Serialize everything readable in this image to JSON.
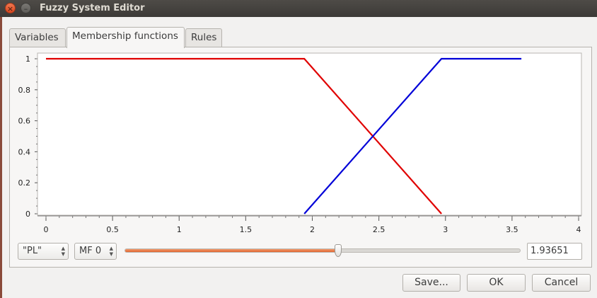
{
  "window": {
    "title": "Fuzzy System Editor",
    "close_glyph": "×",
    "minimize_glyph": "–"
  },
  "tabs": [
    {
      "label": "Variables"
    },
    {
      "label": "Membership functions"
    },
    {
      "label": "Rules"
    }
  ],
  "controls": {
    "variable_select": "\"PL\"",
    "mf_select": "MF 0",
    "slider_value": 1.93651,
    "slider_min": 0,
    "slider_max": 3.6,
    "value_text": "1.93651"
  },
  "buttons": {
    "save": "Save...",
    "ok": "OK",
    "cancel": "Cancel"
  },
  "colors": {
    "series_red": "#e00000",
    "series_blue": "#0000d8",
    "slider_accent": "#e8703a"
  },
  "chart_data": {
    "type": "line",
    "xlim": [
      0,
      4
    ],
    "ylim": [
      0,
      1
    ],
    "x_ticks": [
      "0",
      "0.5",
      "1",
      "1.5",
      "2",
      "2.5",
      "3",
      "3.5",
      "4"
    ],
    "y_ticks": [
      "0",
      "0.2",
      "0.4",
      "0.6",
      "0.8",
      "1"
    ],
    "series": [
      {
        "color": "#e00000",
        "points": [
          [
            0,
            1
          ],
          [
            1.94,
            1
          ],
          [
            2.97,
            0
          ]
        ]
      },
      {
        "color": "#0000d8",
        "points": [
          [
            1.94,
            0
          ],
          [
            2.97,
            1
          ],
          [
            3.57,
            1
          ]
        ]
      }
    ]
  }
}
